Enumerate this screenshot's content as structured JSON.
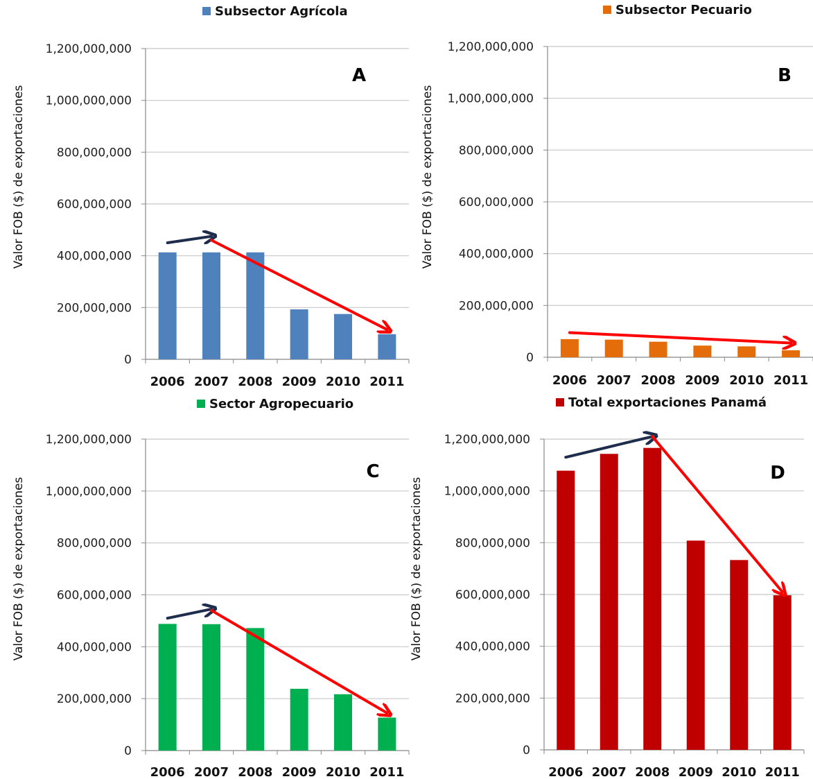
{
  "colors": {
    "agricola": "#4f81bd",
    "pecuario": "#e46c0a",
    "agropecuario": "#00b050",
    "total": "#c00000",
    "up_arrow": "#1f2d4d",
    "down_arrow": "#ff0000",
    "grid": "#c8c8c8"
  },
  "chart_data": [
    {
      "type": "bar",
      "panel_letter": "A",
      "legend": "Subsector Agrícola",
      "ylabel": "Valor FOB ($) de exportaciones",
      "categories": [
        "2006",
        "2007",
        "2008",
        "2009",
        "2010",
        "2011"
      ],
      "series": [
        {
          "name": "Subsector Agrícola",
          "values": [
            413000000,
            413000000,
            413000000,
            193000000,
            175000000,
            97000000
          ]
        }
      ],
      "ylim": [
        0,
        1200000000
      ],
      "yticks": [
        "0",
        "200,000,000",
        "400,000,000",
        "600,000,000",
        "800,000,000",
        "1,000,000,000",
        "1,200,000,000"
      ],
      "grid": true,
      "legend_position": "top",
      "arrows": [
        {
          "direction": "up",
          "from": [
            "2006",
            450000000
          ],
          "to": [
            "2007",
            475000000
          ]
        },
        {
          "direction": "down",
          "from": [
            "2007",
            460000000
          ],
          "to": [
            "2011",
            115000000
          ]
        }
      ]
    },
    {
      "type": "bar",
      "panel_letter": "B",
      "legend": "Subsector Pecuario",
      "ylabel": "Valor FOB ($) de exportaciones",
      "categories": [
        "2006",
        "2007",
        "2008",
        "2009",
        "2010",
        "2011"
      ],
      "series": [
        {
          "name": "Subsector Pecuario",
          "values": [
            70000000,
            68000000,
            60000000,
            45000000,
            42000000,
            27000000
          ]
        }
      ],
      "ylim": [
        0,
        1200000000
      ],
      "yticks": [
        "0",
        "200,000,000",
        "400,000,000",
        "600,000,000",
        "800,000,000",
        "1,000,000,000",
        "1,200,000,000"
      ],
      "grid": true,
      "legend_position": "top",
      "arrows": [
        {
          "direction": "down",
          "from": [
            "2006",
            95000000
          ],
          "to": [
            "2011",
            55000000
          ]
        }
      ]
    },
    {
      "type": "bar",
      "panel_letter": "C",
      "legend": "Sector Agropecuario",
      "ylabel": "Valor FOB ($) de exportaciones",
      "categories": [
        "2006",
        "2007",
        "2008",
        "2009",
        "2010",
        "2011"
      ],
      "series": [
        {
          "name": "Sector Agropecuario",
          "values": [
            488000000,
            487000000,
            472000000,
            238000000,
            217000000,
            127000000
          ]
        }
      ],
      "ylim": [
        0,
        1200000000
      ],
      "yticks": [
        "0",
        "200,000,000",
        "400,000,000",
        "600,000,000",
        "800,000,000",
        "1,000,000,000",
        "1,200,000,000"
      ],
      "grid": true,
      "legend_position": "top",
      "arrows": [
        {
          "direction": "up",
          "from": [
            "2006",
            510000000
          ],
          "to": [
            "2007",
            545000000
          ]
        },
        {
          "direction": "down",
          "from": [
            "2007",
            540000000
          ],
          "to": [
            "2011",
            145000000
          ]
        }
      ]
    },
    {
      "type": "bar",
      "panel_letter": "D",
      "legend": "Total exportaciones Panamá",
      "ylabel": "Valor FOB ($) de exportaciones",
      "categories": [
        "2006",
        "2007",
        "2008",
        "2009",
        "2010",
        "2011"
      ],
      "series": [
        {
          "name": "Total exportaciones Panamá",
          "values": [
            1078000000,
            1143000000,
            1166000000,
            808000000,
            733000000,
            597000000
          ]
        }
      ],
      "ylim": [
        0,
        1200000000
      ],
      "yticks": [
        "0",
        "200,000,000",
        "400,000,000",
        "600,000,000",
        "800,000,000",
        "1,000,000,000",
        "1,200,000,000"
      ],
      "grid": true,
      "legend_position": "top",
      "arrows": [
        {
          "direction": "up",
          "from": [
            "2006",
            1130000000
          ],
          "to": [
            "2008",
            1210000000
          ]
        },
        {
          "direction": "down",
          "from": [
            "2008",
            1210000000
          ],
          "to": [
            "2011",
            610000000
          ]
        }
      ]
    }
  ]
}
